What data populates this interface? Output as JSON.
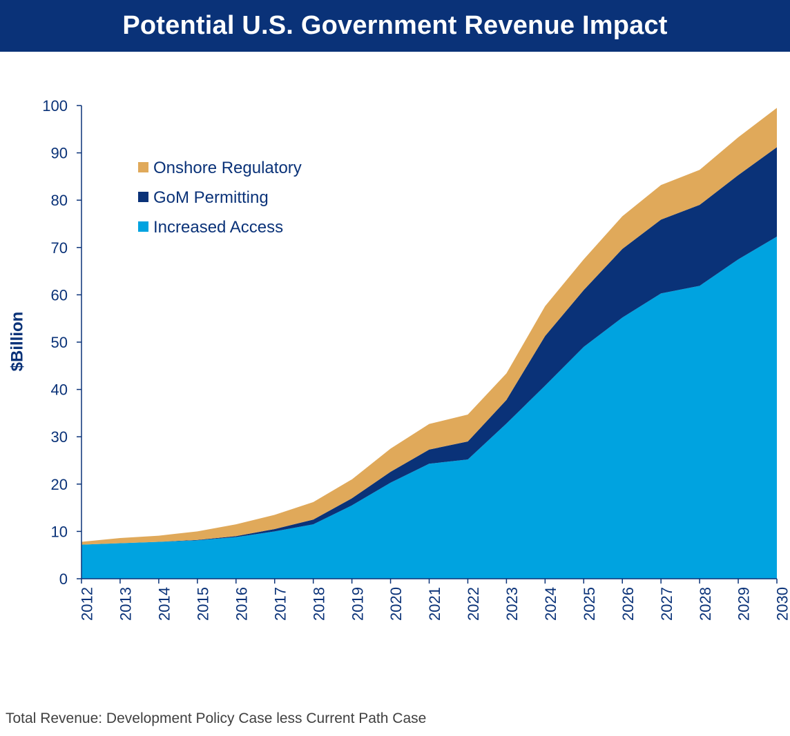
{
  "header": {
    "title": "Potential U.S. Government Revenue Impact"
  },
  "footnote": "Total Revenue: Development Policy Case less Current Path Case",
  "colors": {
    "header_bg": "#0a3278",
    "axis_text": "#0a3278"
  },
  "chart_data": {
    "type": "area",
    "stacked": true,
    "title": "Potential U.S. Government Revenue Impact",
    "xlabel": "",
    "ylabel": "$Billion",
    "ylim": [
      0,
      100
    ],
    "yticks": [
      0,
      10,
      20,
      30,
      40,
      50,
      60,
      70,
      80,
      90,
      100
    ],
    "x": [
      "2012",
      "2013",
      "2014",
      "2015",
      "2016",
      "2017",
      "2018",
      "2019",
      "2020",
      "2021",
      "2022",
      "2023",
      "2024",
      "2025",
      "2026",
      "2027",
      "2028",
      "2029",
      "2030"
    ],
    "legend_position": "top-left",
    "grid": false,
    "series": [
      {
        "name": "Increased Access",
        "color": "#00a3e0",
        "values": [
          7.2,
          7.5,
          7.8,
          8.1,
          8.8,
          10.0,
          11.5,
          15.5,
          20.3,
          24.3,
          25.2,
          32.8,
          40.8,
          49.0,
          55.2,
          60.3,
          61.9,
          67.5,
          72.3
        ]
      },
      {
        "name": "GoM Permitting",
        "color": "#0a3278",
        "values": [
          0.0,
          0.0,
          0.0,
          0.1,
          0.2,
          0.5,
          1.0,
          1.5,
          2.3,
          3.0,
          3.8,
          5.0,
          10.5,
          12.0,
          14.5,
          15.6,
          17.1,
          17.8,
          18.9
        ]
      },
      {
        "name": "Onshore Regulatory",
        "color": "#e0a95a",
        "values": [
          0.6,
          1.1,
          1.3,
          1.8,
          2.5,
          3.0,
          3.7,
          4.0,
          4.9,
          5.4,
          5.7,
          5.6,
          6.3,
          6.5,
          6.9,
          7.3,
          7.4,
          8.0,
          8.3
        ]
      }
    ],
    "legend_order": [
      "Onshore Regulatory",
      "GoM Permitting",
      "Increased Access"
    ]
  }
}
